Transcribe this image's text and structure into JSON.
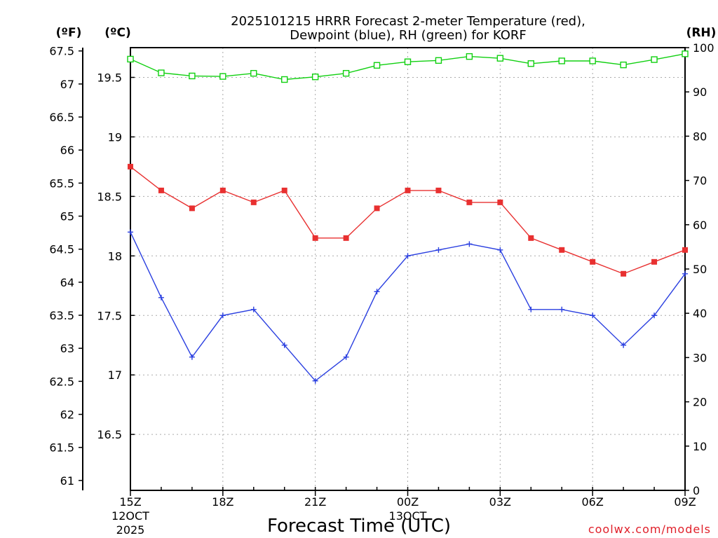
{
  "chart_data": {
    "type": "line",
    "title_line1": "2025101215 HRRR Forecast 2-meter Temperature (red),",
    "title_line2": "Dewpoint (blue), RH (green) for KORF",
    "unit_f": "(ºF)",
    "unit_c": "(ºC)",
    "unit_rh": "(RH)",
    "xlabel": "Forecast Time (UTC)",
    "watermark": "coolwx.com/models",
    "x": [
      0,
      1,
      2,
      3,
      4,
      5,
      6,
      7,
      8,
      9,
      10,
      11,
      12,
      13,
      14,
      15,
      16,
      17,
      18
    ],
    "xlim": [
      0,
      18
    ],
    "x_ticks": [
      {
        "x": 0,
        "label": "15Z",
        "sub1": "12OCT",
        "sub2": "2025"
      },
      {
        "x": 3,
        "label": "18Z",
        "sub1": "",
        "sub2": ""
      },
      {
        "x": 6,
        "label": "21Z",
        "sub1": "",
        "sub2": ""
      },
      {
        "x": 9,
        "label": "00Z",
        "sub1": "13OCT",
        "sub2": ""
      },
      {
        "x": 12,
        "label": "03Z",
        "sub1": "",
        "sub2": ""
      },
      {
        "x": 15,
        "label": "06Z",
        "sub1": "",
        "sub2": ""
      },
      {
        "x": 18,
        "label": "09Z",
        "sub1": "",
        "sub2": ""
      }
    ],
    "ylim_c": [
      16.03,
      19.75
    ],
    "ylim_f": [
      60.85,
      67.55
    ],
    "ylim_rh": [
      0,
      100
    ],
    "yticks_c": [
      "16.5",
      "17",
      "17.5",
      "18",
      "18.5",
      "19",
      "19.5"
    ],
    "yticks_f": [
      "61",
      "61.5",
      "62",
      "62.5",
      "63",
      "63.5",
      "64",
      "64.5",
      "65",
      "65.5",
      "66",
      "66.5",
      "67",
      "67.5"
    ],
    "yticks_rh": [
      "0",
      "10",
      "20",
      "30",
      "40",
      "50",
      "60",
      "70",
      "80",
      "90",
      "100"
    ],
    "series": [
      {
        "name": "Temperature",
        "color": "#e83030",
        "marker": "filled-square",
        "values": [
          18.75,
          18.55,
          18.4,
          18.55,
          18.45,
          18.55,
          18.15,
          18.15,
          18.4,
          18.55,
          18.55,
          18.45,
          18.45,
          18.15,
          18.05,
          17.95,
          17.85,
          17.95,
          18.05
        ]
      },
      {
        "name": "Dewpoint",
        "color": "#2a3fe0",
        "marker": "plus",
        "values": [
          18.2,
          17.65,
          17.15,
          17.5,
          17.55,
          17.25,
          16.95,
          17.15,
          17.7,
          18.0,
          18.05,
          18.1,
          18.05,
          17.55,
          17.55,
          17.5,
          17.25,
          17.5,
          17.85
        ]
      },
      {
        "name": "RH",
        "color": "#10d010",
        "marker": "open-square",
        "values": [
          97.4,
          94.3,
          93.6,
          93.5,
          94.2,
          92.8,
          93.4,
          94.2,
          96.0,
          96.8,
          97.1,
          98.0,
          97.6,
          96.4,
          97.0,
          97.0,
          96.1,
          97.3,
          98.6
        ]
      }
    ]
  }
}
